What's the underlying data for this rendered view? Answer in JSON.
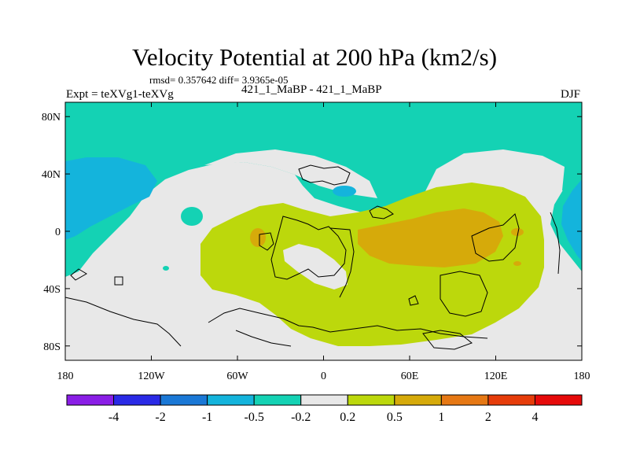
{
  "title": "Velocity Potential at 200 hPa (km2/s)",
  "stats": "rmsd= 0.357642 diff= 3.9365e-05",
  "experiment": "Expt = teXVg1-teXVg",
  "runs": "421_1_MaBP - 421_1_MaBP",
  "season": "DJF",
  "map_axes": {
    "lon_range": [
      -180,
      180
    ],
    "lat_range": [
      -90,
      90
    ],
    "lon_ticks": [
      {
        "value": -180,
        "label": "180"
      },
      {
        "value": -120,
        "label": "120W"
      },
      {
        "value": -60,
        "label": "60W"
      },
      {
        "value": 0,
        "label": "0"
      },
      {
        "value": 60,
        "label": "60E"
      },
      {
        "value": 120,
        "label": "120E"
      },
      {
        "value": 180,
        "label": "180"
      }
    ],
    "lat_ticks": [
      {
        "value": 80,
        "label": "80N"
      },
      {
        "value": 40,
        "label": "40N"
      },
      {
        "value": 0,
        "label": "0"
      },
      {
        "value": -40,
        "label": "40S"
      },
      {
        "value": -80,
        "label": "80S"
      }
    ]
  },
  "colorbar": {
    "colors": [
      "#8a1ee6",
      "#2a2ae6",
      "#1a78d6",
      "#14b4dc",
      "#14d2b4",
      "#e8e8e8",
      "#bcd80c",
      "#d6aa0a",
      "#e67814",
      "#e63c0a",
      "#e60a0a"
    ],
    "labels": [
      "-4",
      "-2",
      "-1",
      "-0.5",
      "-0.2",
      "0.2",
      "0.5",
      "1",
      "2",
      "4"
    ]
  },
  "regions": [
    {
      "name": "north-cap-negative-region",
      "category": "-0.5 to -0.2",
      "color": "#14d2b4"
    },
    {
      "name": "west-pacific-negative-region",
      "category": "-1 to -0.5",
      "color": "#14b4dc"
    },
    {
      "name": "east-pacific-negative-region",
      "category": "-1 to -0.5",
      "color": "#14b4dc"
    },
    {
      "name": "tropical-positive-region",
      "category": "0.2 to 0.5",
      "color": "#bcd80c"
    },
    {
      "name": "indian-ocean-max-region",
      "category": "0.5 to 1",
      "color": "#d6aa0a"
    }
  ]
}
